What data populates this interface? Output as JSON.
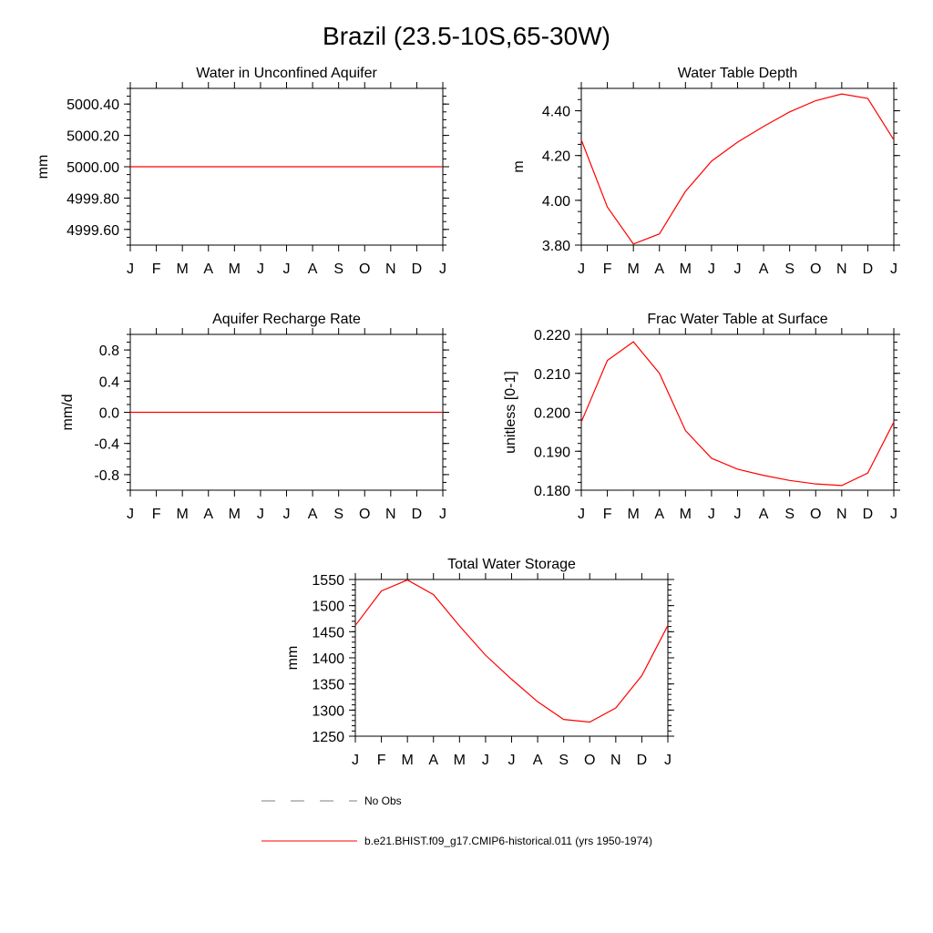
{
  "page_title": "Brazil (23.5-10S,65-30W)",
  "months": [
    "J",
    "F",
    "M",
    "A",
    "M",
    "J",
    "J",
    "A",
    "S",
    "O",
    "N",
    "D",
    "J"
  ],
  "colors": {
    "model": "#ff0000",
    "obs": "#7f7f7f",
    "axis": "#000000"
  },
  "legend": {
    "obs_label": "No Obs",
    "model_label": "b.e21.BHIST.f09_g17.CMIP6-historical.011 (yrs 1950-1974)"
  },
  "chart_data": [
    {
      "type": "line",
      "title": "Water in Unconfined Aquifer",
      "ylabel": "mm",
      "ylim": [
        4999.5,
        5000.5
      ],
      "yticks": [
        4999.6,
        4999.8,
        5000.0,
        5000.2,
        5000.4
      ],
      "ytick_labels": [
        "4999.60",
        "4999.80",
        "5000.00",
        "5000.20",
        "5000.40"
      ],
      "yminor_step": 0.05,
      "x": [
        "J",
        "F",
        "M",
        "A",
        "M",
        "J",
        "J",
        "A",
        "S",
        "O",
        "N",
        "D",
        "J"
      ],
      "series": [
        {
          "values": [
            5000,
            5000,
            5000,
            5000,
            5000,
            5000,
            5000,
            5000,
            5000,
            5000,
            5000,
            5000,
            5000
          ]
        }
      ]
    },
    {
      "type": "line",
      "title": "Water Table Depth",
      "ylabel": "m",
      "ylim": [
        3.8,
        4.5
      ],
      "yticks": [
        3.8,
        4.0,
        4.2,
        4.4
      ],
      "ytick_labels": [
        "3.80",
        "4.00",
        "4.20",
        "4.40"
      ],
      "yminor_step": 0.05,
      "x": [
        "J",
        "F",
        "M",
        "A",
        "M",
        "J",
        "J",
        "A",
        "S",
        "O",
        "N",
        "D",
        "J"
      ],
      "series": [
        {
          "values": [
            4.27,
            3.97,
            3.805,
            3.85,
            4.04,
            4.175,
            4.26,
            4.33,
            4.395,
            4.445,
            4.475,
            4.455,
            4.27
          ]
        }
      ]
    },
    {
      "type": "line",
      "title": "Aquifer Recharge Rate",
      "ylabel": "mm/d",
      "ylim": [
        -1.0,
        1.0
      ],
      "yticks": [
        -0.8,
        -0.4,
        0.0,
        0.4,
        0.8
      ],
      "ytick_labels": [
        "-0.8",
        "-0.4",
        "0.0",
        "0.4",
        "0.8"
      ],
      "yminor_step": 0.1,
      "x": [
        "J",
        "F",
        "M",
        "A",
        "M",
        "J",
        "J",
        "A",
        "S",
        "O",
        "N",
        "D",
        "J"
      ],
      "series": [
        {
          "values": [
            0,
            0,
            0,
            0,
            0,
            0,
            0,
            0,
            0,
            0,
            0,
            0,
            0
          ]
        }
      ]
    },
    {
      "type": "line",
      "title": "Frac Water Table at Surface",
      "ylabel": "unitless [0-1]",
      "ylim": [
        0.18,
        0.22
      ],
      "yticks": [
        0.18,
        0.19,
        0.2,
        0.21,
        0.22
      ],
      "ytick_labels": [
        "0.180",
        "0.190",
        "0.200",
        "0.210",
        "0.220"
      ],
      "yminor_step": 0.002,
      "x": [
        "J",
        "F",
        "M",
        "A",
        "M",
        "J",
        "J",
        "A",
        "S",
        "O",
        "N",
        "D",
        "J"
      ],
      "series": [
        {
          "values": [
            0.1975,
            0.2133,
            0.2181,
            0.21,
            0.1953,
            0.1882,
            0.1854,
            0.1838,
            0.1825,
            0.1816,
            0.1812,
            0.1844,
            0.1975
          ]
        }
      ]
    },
    {
      "type": "line",
      "title": "Total Water Storage",
      "ylabel": "mm",
      "ylim": [
        1250,
        1550
      ],
      "yticks": [
        1250,
        1300,
        1350,
        1400,
        1450,
        1500,
        1550
      ],
      "ytick_labels": [
        "1250",
        "1300",
        "1350",
        "1400",
        "1450",
        "1500",
        "1550"
      ],
      "yminor_step": 10,
      "x": [
        "J",
        "F",
        "M",
        "A",
        "M",
        "J",
        "J",
        "A",
        "S",
        "O",
        "N",
        "D",
        "J"
      ],
      "series": [
        {
          "values": [
            1462,
            1528,
            1549,
            1521,
            1461,
            1405,
            1359,
            1316,
            1282,
            1277,
            1304,
            1366,
            1462
          ]
        }
      ]
    }
  ]
}
